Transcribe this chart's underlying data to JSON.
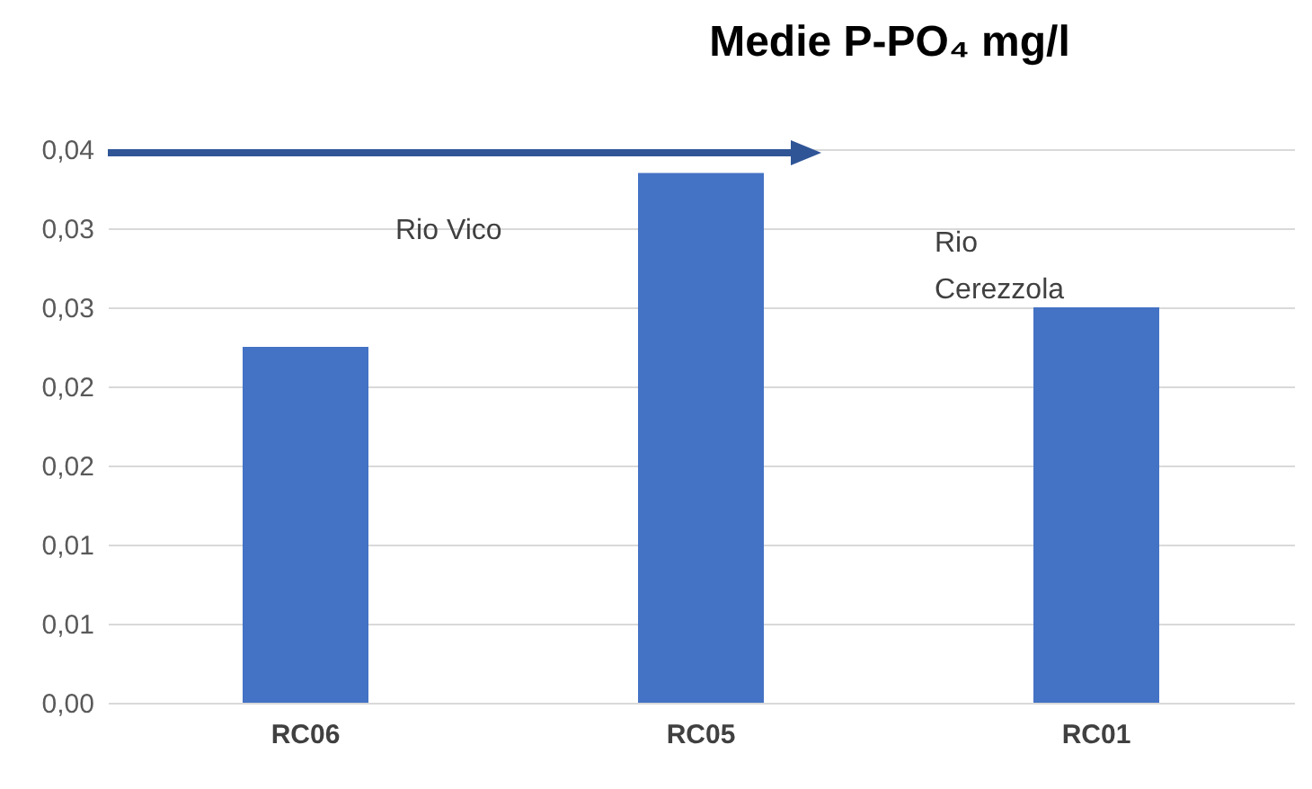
{
  "chart_data": {
    "type": "bar",
    "title": "Medie P-PO₄ mg/l",
    "categories": [
      "RC06",
      "RC05",
      "RC01"
    ],
    "values": [
      0.0225,
      0.0335,
      0.025
    ],
    "color": "#4472c4",
    "ylim": [
      0,
      0.035
    ],
    "yticks": [
      {
        "value": 0,
        "label": "0,00"
      },
      {
        "value": 0.005,
        "label": "0,01"
      },
      {
        "value": 0.01,
        "label": "0,01"
      },
      {
        "value": 0.015,
        "label": "0,02"
      },
      {
        "value": 0.02,
        "label": "0,02"
      },
      {
        "value": 0.025,
        "label": "0,03"
      },
      {
        "value": 0.03,
        "label": "0,03"
      },
      {
        "value": 0.035,
        "label": "0,04"
      }
    ],
    "grid": "y",
    "annotations": [
      "Rio Vico",
      "Rio Cerezzola"
    ]
  }
}
